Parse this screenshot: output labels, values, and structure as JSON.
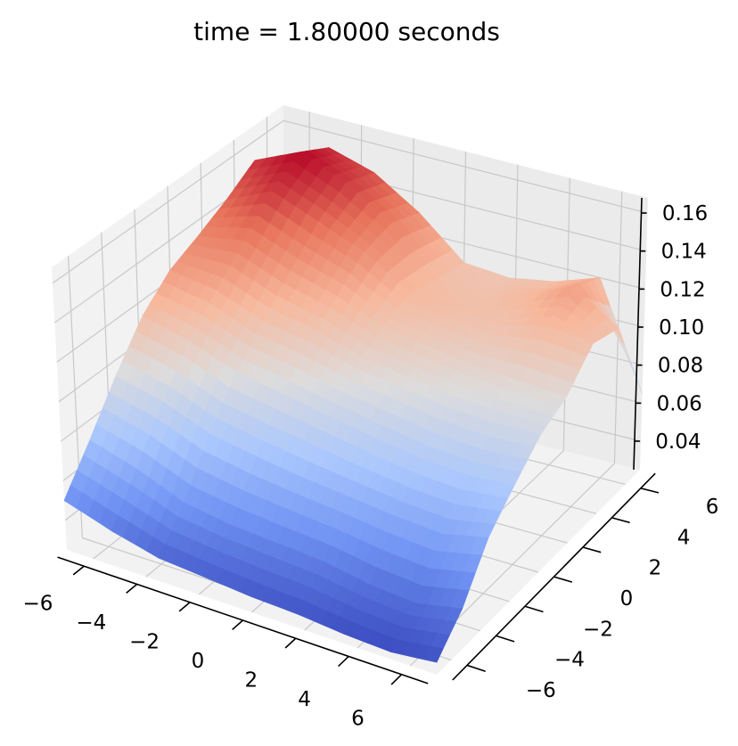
{
  "chart_data": {
    "type": "surface3d",
    "title": "time = 1.80000 seconds",
    "xlabel": "",
    "ylabel": "",
    "zlabel": "",
    "colormap": "coolwarm",
    "colormap_stops": [
      "#3b4cc0",
      "#6f92f3",
      "#aac7fd",
      "#dddcdc",
      "#f7b89c",
      "#e7745b",
      "#b40426"
    ],
    "pane_color": "#f2f2f2",
    "grid": true,
    "xlim": [
      -7,
      7
    ],
    "ylim": [
      -7,
      7
    ],
    "zlim": [
      0.025,
      0.168
    ],
    "x_ticks": [
      "−6",
      "−4",
      "−2",
      "0",
      "2",
      "4",
      "6"
    ],
    "y_ticks": [
      "−6",
      "−4",
      "−2",
      "0",
      "2",
      "4",
      "6"
    ],
    "z_ticks": [
      "0.04",
      "0.06",
      "0.08",
      "0.10",
      "0.12",
      "0.14",
      "0.16"
    ],
    "x_tick_values": [
      -6,
      -4,
      -2,
      0,
      2,
      4,
      6
    ],
    "y_tick_values": [
      -6,
      -4,
      -2,
      0,
      2,
      4,
      6
    ],
    "z_tick_values": [
      0.04,
      0.06,
      0.08,
      0.1,
      0.12,
      0.14,
      0.16
    ],
    "x": [
      -7,
      -5.25,
      -3.5,
      -1.75,
      0,
      1.75,
      3.5,
      5.25,
      7
    ],
    "y": [
      -7,
      -5.25,
      -3.5,
      -1.75,
      0,
      1.75,
      3.5,
      5.25,
      7
    ],
    "z_rows_by_y": [
      [
        0.05,
        0.042,
        0.036,
        0.034,
        0.032,
        0.031,
        0.029,
        0.028,
        0.03
      ],
      [
        0.07,
        0.062,
        0.052,
        0.048,
        0.046,
        0.044,
        0.04,
        0.038,
        0.042
      ],
      [
        0.092,
        0.085,
        0.075,
        0.07,
        0.066,
        0.063,
        0.06,
        0.058,
        0.062
      ],
      [
        0.112,
        0.105,
        0.095,
        0.09,
        0.085,
        0.08,
        0.076,
        0.074,
        0.075
      ],
      [
        0.125,
        0.12,
        0.11,
        0.105,
        0.098,
        0.094,
        0.09,
        0.088,
        0.088
      ],
      [
        0.132,
        0.135,
        0.125,
        0.118,
        0.108,
        0.104,
        0.1,
        0.098,
        0.096
      ],
      [
        0.14,
        0.15,
        0.14,
        0.13,
        0.115,
        0.112,
        0.11,
        0.115,
        0.112
      ],
      [
        0.15,
        0.16,
        0.15,
        0.135,
        0.112,
        0.11,
        0.115,
        0.125,
        0.11
      ],
      [
        0.142,
        0.152,
        0.145,
        0.13,
        0.11,
        0.108,
        0.112,
        0.12,
        0.065
      ]
    ]
  }
}
